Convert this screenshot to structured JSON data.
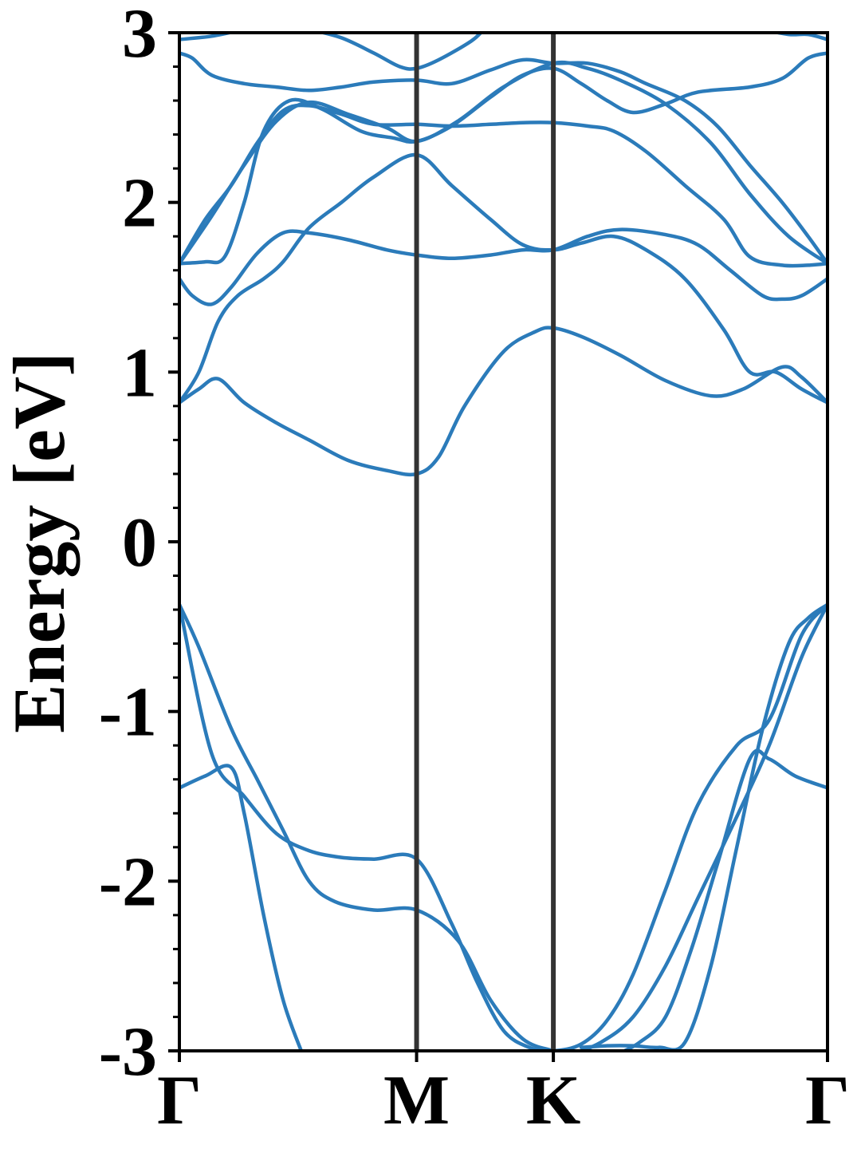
{
  "chart_data": {
    "type": "line",
    "title": "",
    "ylabel": "Energy [eV]",
    "xlabel": "",
    "ylim": [
      -3,
      3
    ],
    "yticks": [
      {
        "value": 3,
        "label": "3"
      },
      {
        "value": 2,
        "label": "2"
      },
      {
        "value": 1,
        "label": "1"
      },
      {
        "value": 0,
        "label": "0"
      },
      {
        "value": -1,
        "label": "-1"
      },
      {
        "value": -2,
        "label": "-2"
      },
      {
        "value": -3,
        "label": "-3"
      }
    ],
    "minor_ytick_step": 0.2,
    "xlim": [
      0,
      1
    ],
    "high_symmetry_points": [
      {
        "label": "Γ",
        "x": 0.0
      },
      {
        "label": "M",
        "x": 0.366
      },
      {
        "label": "K",
        "x": 0.577
      },
      {
        "label": "Γ",
        "x": 1.0
      }
    ],
    "grid": false,
    "band_color": "#2b7bba",
    "divider_color": "#333333",
    "series": [
      {
        "values": [
          [
            0,
            -0.37
          ],
          [
            0.05,
            -1.25
          ],
          [
            0.1,
            -1.5
          ],
          [
            0.15,
            -1.72
          ],
          [
            0.2,
            -1.82
          ],
          [
            0.25,
            -1.86
          ],
          [
            0.3,
            -1.87
          ],
          [
            0.366,
            -1.87
          ],
          [
            0.42,
            -2.25
          ],
          [
            0.46,
            -2.6
          ],
          [
            0.5,
            -2.88
          ],
          [
            0.54,
            -2.98
          ],
          [
            0.577,
            -3.0
          ],
          [
            0.62,
            -2.96
          ],
          [
            0.66,
            -2.82
          ],
          [
            0.7,
            -2.55
          ],
          [
            0.75,
            -2.05
          ],
          [
            0.8,
            -1.55
          ],
          [
            0.86,
            -1.2
          ],
          [
            0.91,
            -1.05
          ],
          [
            0.96,
            -0.55
          ],
          [
            1.0,
            -0.37
          ]
        ]
      },
      {
        "values": [
          [
            0,
            -0.37
          ],
          [
            0.03,
            -0.62
          ],
          [
            0.08,
            -1.1
          ],
          [
            0.12,
            -1.4
          ],
          [
            0.16,
            -1.7
          ],
          [
            0.2,
            -2.0
          ],
          [
            0.24,
            -2.12
          ],
          [
            0.3,
            -2.17
          ],
          [
            0.366,
            -2.17
          ],
          [
            0.43,
            -2.35
          ],
          [
            0.48,
            -2.7
          ],
          [
            0.53,
            -2.93
          ],
          [
            0.577,
            -3.0
          ],
          [
            0.6,
            -3.02
          ],
          [
            0.65,
            -2.95
          ],
          [
            0.7,
            -2.8
          ],
          [
            0.75,
            -2.5
          ],
          [
            0.8,
            -2.1
          ],
          [
            0.86,
            -1.62
          ],
          [
            0.91,
            -1.2
          ],
          [
            0.96,
            -0.68
          ],
          [
            1.0,
            -0.37
          ]
        ]
      },
      {
        "values": [
          [
            0,
            -1.45
          ],
          [
            0.04,
            -1.38
          ],
          [
            0.08,
            -1.33
          ],
          [
            0.1,
            -1.6
          ],
          [
            0.13,
            -2.2
          ],
          [
            0.16,
            -2.7
          ],
          [
            0.19,
            -3.02
          ]
        ]
      },
      {
        "values": [
          [
            0.675,
            -3.02
          ],
          [
            0.71,
            -2.95
          ],
          [
            0.75,
            -2.8
          ],
          [
            0.79,
            -2.4
          ],
          [
            0.83,
            -1.9
          ],
          [
            0.88,
            -1.28
          ],
          [
            0.91,
            -1.28
          ],
          [
            0.95,
            -1.38
          ],
          [
            1.0,
            -1.45
          ]
        ]
      },
      {
        "values": [
          [
            0.62,
            -2.98
          ],
          [
            0.66,
            -2.97
          ],
          [
            0.7,
            -2.97
          ],
          [
            0.74,
            -2.98
          ],
          [
            0.78,
            -2.95
          ],
          [
            0.82,
            -2.5
          ],
          [
            0.86,
            -1.8
          ],
          [
            0.9,
            -1.1
          ],
          [
            0.94,
            -0.6
          ],
          [
            0.97,
            -0.45
          ],
          [
            1.0,
            -0.37
          ]
        ]
      },
      {
        "values": [
          [
            0,
            0.82
          ],
          [
            0.03,
            0.9
          ],
          [
            0.06,
            0.96
          ],
          [
            0.1,
            0.82
          ],
          [
            0.15,
            0.7
          ],
          [
            0.2,
            0.6
          ],
          [
            0.26,
            0.48
          ],
          [
            0.32,
            0.42
          ],
          [
            0.366,
            0.4
          ],
          [
            0.4,
            0.5
          ],
          [
            0.44,
            0.8
          ],
          [
            0.5,
            1.12
          ],
          [
            0.55,
            1.24
          ],
          [
            0.577,
            1.26
          ],
          [
            0.62,
            1.21
          ],
          [
            0.68,
            1.1
          ],
          [
            0.75,
            0.95
          ],
          [
            0.82,
            0.86
          ],
          [
            0.87,
            0.9
          ],
          [
            0.93,
            1.03
          ],
          [
            0.96,
            0.97
          ],
          [
            1.0,
            0.82
          ]
        ]
      },
      {
        "values": [
          [
            0,
            0.82
          ],
          [
            0.03,
            1.0
          ],
          [
            0.06,
            1.3
          ],
          [
            0.09,
            1.45
          ],
          [
            0.13,
            1.55
          ],
          [
            0.16,
            1.65
          ],
          [
            0.2,
            1.85
          ],
          [
            0.25,
            2.0
          ],
          [
            0.3,
            2.15
          ],
          [
            0.366,
            2.28
          ],
          [
            0.42,
            2.1
          ],
          [
            0.48,
            1.9
          ],
          [
            0.53,
            1.75
          ],
          [
            0.577,
            1.72
          ],
          [
            0.62,
            1.76
          ],
          [
            0.67,
            1.8
          ],
          [
            0.72,
            1.72
          ],
          [
            0.78,
            1.55
          ],
          [
            0.84,
            1.25
          ],
          [
            0.88,
            1.0
          ],
          [
            0.92,
            1.0
          ],
          [
            0.96,
            0.9
          ],
          [
            1.0,
            0.82
          ]
        ]
      },
      {
        "values": [
          [
            0,
            1.55
          ],
          [
            0.02,
            1.45
          ],
          [
            0.05,
            1.4
          ],
          [
            0.08,
            1.5
          ],
          [
            0.12,
            1.7
          ],
          [
            0.16,
            1.82
          ],
          [
            0.2,
            1.82
          ],
          [
            0.26,
            1.78
          ],
          [
            0.32,
            1.72
          ],
          [
            0.366,
            1.69
          ],
          [
            0.42,
            1.67
          ],
          [
            0.48,
            1.69
          ],
          [
            0.53,
            1.72
          ],
          [
            0.577,
            1.72
          ],
          [
            0.63,
            1.8
          ],
          [
            0.68,
            1.84
          ],
          [
            0.75,
            1.81
          ],
          [
            0.8,
            1.75
          ],
          [
            0.85,
            1.6
          ],
          [
            0.9,
            1.45
          ],
          [
            0.93,
            1.43
          ],
          [
            0.96,
            1.45
          ],
          [
            1.0,
            1.55
          ]
        ]
      },
      {
        "values": [
          [
            0,
            1.64
          ],
          [
            0.04,
            1.65
          ],
          [
            0.07,
            1.68
          ],
          [
            0.1,
            2.0
          ],
          [
            0.13,
            2.42
          ],
          [
            0.17,
            2.6
          ],
          [
            0.22,
            2.55
          ],
          [
            0.28,
            2.42
          ],
          [
            0.33,
            2.38
          ],
          [
            0.366,
            2.36
          ],
          [
            0.42,
            2.45
          ],
          [
            0.48,
            2.62
          ],
          [
            0.53,
            2.75
          ],
          [
            0.577,
            2.79
          ],
          [
            0.62,
            2.7
          ],
          [
            0.66,
            2.6
          ],
          [
            0.7,
            2.53
          ],
          [
            0.75,
            2.58
          ],
          [
            0.8,
            2.65
          ],
          [
            0.88,
            2.68
          ],
          [
            0.93,
            2.73
          ],
          [
            0.97,
            2.85
          ],
          [
            1.0,
            2.88
          ]
        ]
      },
      {
        "values": [
          [
            0,
            1.64
          ],
          [
            0.04,
            1.9
          ],
          [
            0.08,
            2.1
          ],
          [
            0.12,
            2.35
          ],
          [
            0.16,
            2.54
          ],
          [
            0.2,
            2.57
          ],
          [
            0.25,
            2.52
          ],
          [
            0.3,
            2.46
          ],
          [
            0.366,
            2.46
          ],
          [
            0.42,
            2.45
          ],
          [
            0.48,
            2.46
          ],
          [
            0.53,
            2.47
          ],
          [
            0.577,
            2.47
          ],
          [
            0.63,
            2.45
          ],
          [
            0.67,
            2.42
          ],
          [
            0.72,
            2.3
          ],
          [
            0.78,
            2.1
          ],
          [
            0.84,
            1.9
          ],
          [
            0.88,
            1.68
          ],
          [
            0.93,
            1.63
          ],
          [
            0.97,
            1.63
          ],
          [
            1.0,
            1.64
          ]
        ]
      },
      {
        "values": [
          [
            0,
            1.64
          ],
          [
            0.05,
            1.92
          ],
          [
            0.1,
            2.22
          ],
          [
            0.15,
            2.48
          ],
          [
            0.2,
            2.59
          ],
          [
            0.26,
            2.52
          ],
          [
            0.32,
            2.44
          ],
          [
            0.366,
            2.36
          ],
          [
            0.43,
            2.48
          ],
          [
            0.5,
            2.68
          ],
          [
            0.577,
            2.82
          ],
          [
            0.63,
            2.79
          ],
          [
            0.68,
            2.72
          ],
          [
            0.75,
            2.58
          ],
          [
            0.82,
            2.35
          ],
          [
            0.88,
            2.05
          ],
          [
            0.94,
            1.8
          ],
          [
            1.0,
            1.64
          ]
        ]
      },
      {
        "values": [
          [
            0,
            2.88
          ],
          [
            0.02,
            2.85
          ],
          [
            0.05,
            2.75
          ],
          [
            0.1,
            2.7
          ],
          [
            0.15,
            2.68
          ],
          [
            0.2,
            2.66
          ],
          [
            0.25,
            2.68
          ],
          [
            0.3,
            2.71
          ],
          [
            0.366,
            2.72
          ],
          [
            0.42,
            2.7
          ],
          [
            0.48,
            2.78
          ],
          [
            0.53,
            2.84
          ],
          [
            0.577,
            2.82
          ],
          [
            0.63,
            2.82
          ],
          [
            0.68,
            2.77
          ],
          [
            0.72,
            2.7
          ],
          [
            0.78,
            2.6
          ],
          [
            0.83,
            2.45
          ],
          [
            0.88,
            2.22
          ],
          [
            0.93,
            2.0
          ],
          [
            0.97,
            1.8
          ],
          [
            1.0,
            1.64
          ]
        ]
      },
      {
        "values": [
          [
            0,
            2.96
          ],
          [
            0.05,
            2.98
          ],
          [
            0.1,
            3.02
          ]
        ]
      },
      {
        "values": [
          [
            0.2,
            3.02
          ],
          [
            0.25,
            2.97
          ],
          [
            0.3,
            2.88
          ],
          [
            0.34,
            2.8
          ],
          [
            0.366,
            2.79
          ],
          [
            0.4,
            2.84
          ],
          [
            0.45,
            2.95
          ],
          [
            0.47,
            3.02
          ]
        ]
      },
      {
        "values": [
          [
            0.9,
            3.02
          ],
          [
            0.94,
            2.99
          ],
          [
            0.97,
            2.99
          ],
          [
            1.0,
            2.96
          ]
        ]
      }
    ]
  }
}
